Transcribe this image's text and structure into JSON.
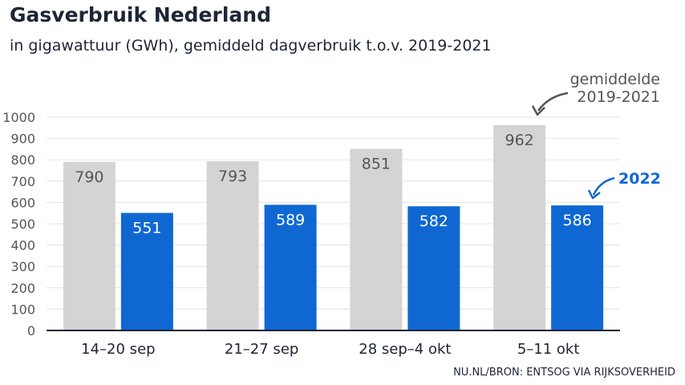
{
  "title": "Gasverbruik Nederland",
  "subtitle": "in gigawattuur (GWh), gemiddeld dagverbruik t.o.v. 2019-2021",
  "source": "NU.NL/BRON: ENTSOG VIA RIJKSOVERHEID",
  "colors": {
    "gray": "#d4d4d4",
    "blue": "#0f68d2",
    "text": "#1e2535"
  },
  "chart_data": {
    "type": "bar",
    "categories": [
      "14–20 sep",
      "21–27 sep",
      "28 sep–4 okt",
      "5–11 okt"
    ],
    "series": [
      {
        "name": "gemiddelde 2019-2021",
        "values": [
          790,
          793,
          851,
          962
        ]
      },
      {
        "name": "2022",
        "values": [
          551,
          589,
          582,
          586
        ]
      }
    ],
    "ylim": [
      0,
      1000
    ],
    "yticks": [
      0,
      100,
      200,
      300,
      400,
      500,
      600,
      700,
      800,
      900,
      1000
    ],
    "grid": true,
    "annotations": {
      "gray_line1": "gemiddelde",
      "gray_line2": "2019-2021",
      "blue": "2022"
    }
  }
}
